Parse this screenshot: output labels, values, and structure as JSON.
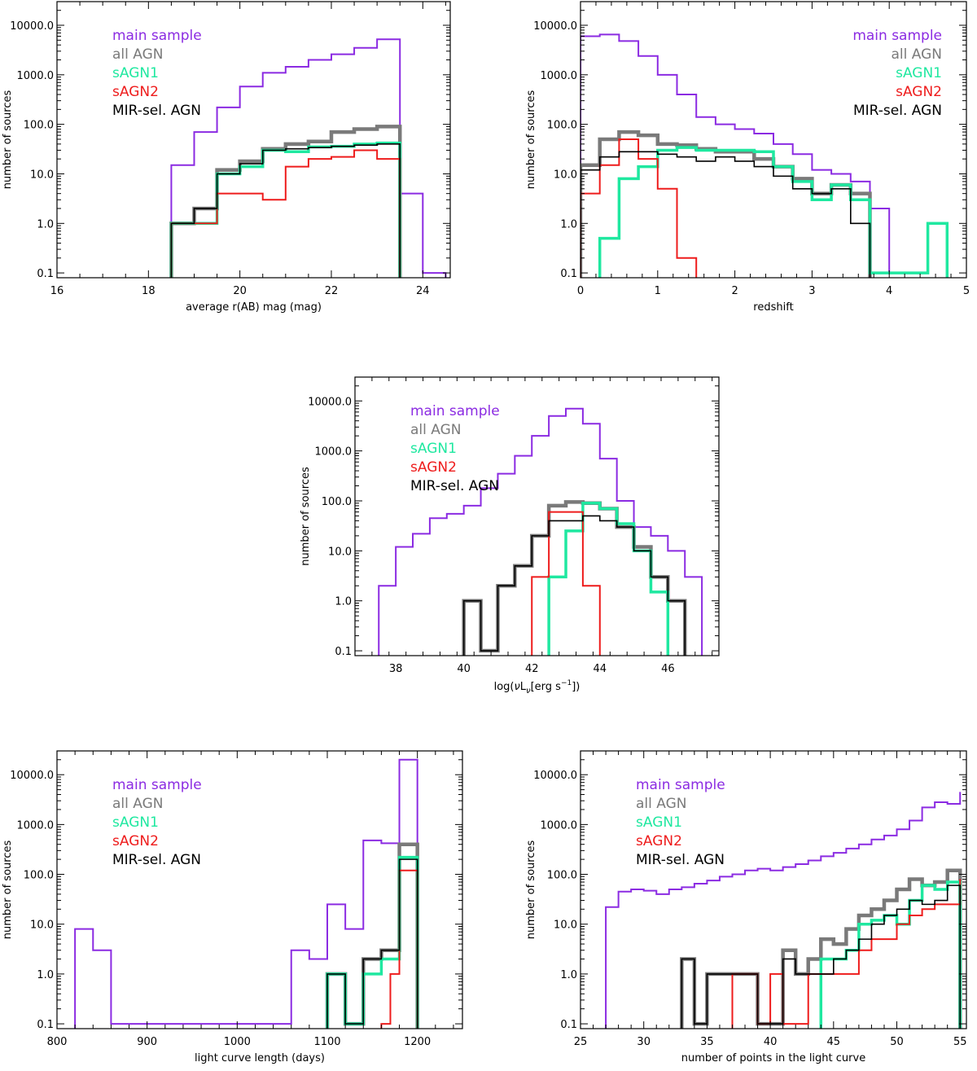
{
  "colors": {
    "main sample": "#8b2be2",
    "all AGN": "#7a7a7a",
    "sAGN1": "#1fe8a0",
    "sAGN2": "#ee1c1c",
    "MIR-sel. AGN": "#000000"
  },
  "chart_data": [
    {
      "id": "rmag",
      "type": "histogram",
      "xlabel": "average r(AB) mag (mag)",
      "ylabel": "number of sources",
      "xlim": [
        16,
        24.6
      ],
      "xticks": [
        16,
        18,
        20,
        22,
        24
      ],
      "xtick_labels": [
        "16",
        "18",
        "20",
        "22",
        "24"
      ],
      "yscale": "log",
      "ylim": [
        0.08,
        30000
      ],
      "yticks": [
        0.1,
        1,
        10,
        100,
        1000,
        10000
      ],
      "ytick_labels": [
        "0.1",
        "1.0",
        "10.0",
        "100.0",
        "1000.0",
        "10000.0"
      ],
      "legend_position": "top-left",
      "legend": [
        "main sample",
        "all AGN",
        "sAGN1",
        "sAGN2",
        "MIR-sel. AGN"
      ],
      "series": [
        {
          "name": "main sample",
          "edges": [
            18.5,
            19,
            19.5,
            20,
            20.5,
            21,
            21.5,
            22,
            22.5,
            23,
            23.5,
            24,
            24.5
          ],
          "counts": [
            15,
            70,
            220,
            580,
            1100,
            1450,
            2000,
            2600,
            3500,
            5200,
            4,
            0.1
          ]
        },
        {
          "name": "all AGN",
          "edges": [
            18.5,
            19,
            19.5,
            20,
            20.5,
            21,
            21.5,
            22,
            22.5,
            23,
            23.5
          ],
          "counts": [
            1,
            2,
            12,
            18,
            32,
            40,
            45,
            70,
            80,
            90
          ]
        },
        {
          "name": "sAGN1",
          "edges": [
            18.5,
            19,
            19.5,
            20,
            20.5,
            21,
            21.5,
            22,
            22.5,
            23,
            23.5
          ],
          "counts": [
            1,
            1,
            10,
            14,
            30,
            28,
            35,
            36,
            40,
            42
          ]
        },
        {
          "name": "sAGN2",
          "edges": [
            18.5,
            19,
            19.5,
            20,
            20.5,
            21,
            21.5,
            22,
            22.5,
            23,
            23.5
          ],
          "counts": [
            1,
            1,
            4,
            4,
            3,
            14,
            20,
            22,
            30,
            20
          ]
        },
        {
          "name": "MIR-sel. AGN",
          "edges": [
            18.5,
            19,
            19.5,
            20,
            20.5,
            21,
            21.5,
            22,
            22.5,
            23,
            23.5
          ],
          "counts": [
            1,
            2,
            10,
            16,
            30,
            32,
            34,
            36,
            38,
            40
          ]
        }
      ]
    },
    {
      "id": "redshift",
      "type": "histogram",
      "xlabel": "redshift",
      "ylabel": "number of sources",
      "xlim": [
        0,
        5
      ],
      "xticks": [
        0,
        1,
        2,
        3,
        4,
        5
      ],
      "xtick_labels": [
        "0",
        "1",
        "2",
        "3",
        "4",
        "5"
      ],
      "yscale": "log",
      "ylim": [
        0.08,
        30000
      ],
      "yticks": [
        0.1,
        1,
        10,
        100,
        1000,
        10000
      ],
      "ytick_labels": [
        "0.1",
        "1.0",
        "10.0",
        "100.0",
        "1000.0",
        "10000.0"
      ],
      "legend_position": "top-right",
      "legend": [
        "main sample",
        "all AGN",
        "sAGN1",
        "sAGN2",
        "MIR-sel. AGN"
      ],
      "series": [
        {
          "name": "main sample",
          "edges": [
            0,
            0.25,
            0.5,
            0.75,
            1.0,
            1.25,
            1.5,
            1.75,
            2.0,
            2.25,
            2.5,
            2.75,
            3.0,
            3.25,
            3.5,
            3.75,
            4.0
          ],
          "counts": [
            6000,
            6500,
            4800,
            2400,
            1000,
            400,
            140,
            100,
            80,
            65,
            40,
            25,
            12,
            10,
            7,
            2,
            0.1
          ]
        },
        {
          "name": "all AGN",
          "edges": [
            0,
            0.25,
            0.5,
            0.75,
            1.0,
            1.25,
            1.5,
            1.75,
            2.0,
            2.25,
            2.5,
            2.75,
            3.0,
            3.25,
            3.5,
            3.75
          ],
          "counts": [
            15,
            50,
            70,
            60,
            40,
            38,
            32,
            28,
            28,
            20,
            14,
            8,
            4,
            6,
            4
          ]
        },
        {
          "name": "sAGN1",
          "edges": [
            0.25,
            0.5,
            0.75,
            1.0,
            1.25,
            1.5,
            1.75,
            2.0,
            2.25,
            2.5,
            2.75,
            3.0,
            3.25,
            3.5,
            3.75,
            4.0,
            4.25,
            4.5,
            4.75
          ],
          "counts": [
            0.5,
            8,
            14,
            30,
            34,
            30,
            30,
            30,
            28,
            14,
            7,
            3,
            6,
            3,
            0.1,
            0.1,
            0.1,
            1
          ]
        },
        {
          "name": "sAGN2",
          "edges": [
            0,
            0.25,
            0.5,
            0.75,
            1.0,
            1.25,
            1.5
          ],
          "counts": [
            4,
            15,
            50,
            20,
            5,
            0.2
          ]
        },
        {
          "name": "MIR-sel. AGN",
          "edges": [
            0,
            0.25,
            0.5,
            0.75,
            1.0,
            1.25,
            1.5,
            1.75,
            2.0,
            2.25,
            2.5,
            2.75,
            3.0,
            3.25,
            3.5,
            3.75
          ],
          "counts": [
            12,
            22,
            28,
            28,
            25,
            22,
            18,
            22,
            18,
            14,
            9,
            5,
            4,
            5,
            1
          ]
        }
      ]
    },
    {
      "id": "luminosity",
      "type": "histogram",
      "xlabel": "log(νL_ν[erg s^-1])",
      "xlabel_parts": [
        "log(",
        "ν",
        "L",
        "ν",
        "[erg s",
        "−1",
        "])"
      ],
      "ylabel": "number of sources",
      "xlim": [
        36.8,
        47.5
      ],
      "xticks": [
        38,
        40,
        42,
        44,
        46
      ],
      "xtick_labels": [
        "38",
        "40",
        "42",
        "44",
        "46"
      ],
      "yscale": "log",
      "ylim": [
        0.08,
        30000
      ],
      "yticks": [
        0.1,
        1,
        10,
        100,
        1000,
        10000
      ],
      "ytick_labels": [
        "0.1",
        "1.0",
        "10.0",
        "100.0",
        "1000.0",
        "10000.0"
      ],
      "legend_position": "top-left",
      "legend": [
        "main sample",
        "all AGN",
        "sAGN1",
        "sAGN2",
        "MIR-sel. AGN"
      ],
      "series": [
        {
          "name": "main sample",
          "edges": [
            37.5,
            38,
            38.5,
            39,
            39.5,
            40,
            40.5,
            41,
            41.5,
            42,
            42.5,
            43,
            43.5,
            44,
            44.5,
            45,
            45.5,
            46,
            46.5,
            47
          ],
          "counts": [
            2,
            12,
            22,
            45,
            55,
            80,
            180,
            350,
            800,
            2000,
            5000,
            7000,
            3500,
            700,
            100,
            30,
            20,
            10,
            3
          ]
        },
        {
          "name": "all AGN",
          "edges": [
            40,
            40.5,
            41,
            41.5,
            42,
            42.5,
            43,
            43.5,
            44,
            44.5,
            45,
            45.5,
            46,
            46.5
          ],
          "counts": [
            1,
            0.1,
            2,
            5,
            20,
            80,
            95,
            90,
            70,
            30,
            12,
            3,
            1
          ]
        },
        {
          "name": "sAGN1",
          "edges": [
            42.5,
            43,
            43.5,
            44,
            44.5,
            45,
            45.5,
            46
          ],
          "counts": [
            3,
            25,
            90,
            70,
            35,
            10,
            1.5
          ]
        },
        {
          "name": "sAGN2",
          "edges": [
            42,
            42.5,
            43,
            43.5,
            44
          ],
          "counts": [
            3,
            60,
            60,
            2
          ]
        },
        {
          "name": "MIR-sel. AGN",
          "edges": [
            40,
            40.5,
            41,
            41.5,
            42,
            42.5,
            43,
            43.5,
            44,
            44.5,
            45,
            45.5,
            46,
            46.5
          ],
          "counts": [
            1,
            0.1,
            2,
            5,
            20,
            40,
            40,
            50,
            40,
            30,
            10,
            3,
            1
          ]
        }
      ]
    },
    {
      "id": "lc_length",
      "type": "histogram",
      "xlabel": "light curve length (days)",
      "ylabel": "number of sources",
      "xlim": [
        800,
        1250
      ],
      "xticks": [
        800,
        900,
        1000,
        1100,
        1200
      ],
      "xtick_labels": [
        "800",
        "900",
        "1000",
        "1100",
        "1200"
      ],
      "yscale": "log",
      "ylim": [
        0.08,
        30000
      ],
      "yticks": [
        0.1,
        1,
        10,
        100,
        1000,
        10000
      ],
      "ytick_labels": [
        "0.1",
        "1.0",
        "10.0",
        "100.0",
        "1000.0",
        "10000.0"
      ],
      "legend_position": "top-left",
      "legend": [
        "main sample",
        "all AGN",
        "sAGN1",
        "sAGN2",
        "MIR-sel. AGN"
      ],
      "series": [
        {
          "name": "main sample",
          "edges": [
            820,
            840,
            860,
            880,
            900,
            920,
            940,
            960,
            980,
            1000,
            1020,
            1040,
            1060,
            1080,
            1100,
            1120,
            1140,
            1160,
            1180,
            1200
          ],
          "counts": [
            8,
            3,
            0.1,
            0.1,
            0.1,
            0.1,
            0.1,
            0.1,
            0.1,
            0.1,
            0.1,
            0.1,
            3,
            2,
            25,
            8,
            480,
            420,
            20000
          ]
        },
        {
          "name": "all AGN",
          "edges": [
            1100,
            1120,
            1140,
            1160,
            1180,
            1200
          ],
          "counts": [
            1,
            0.1,
            2,
            3,
            400
          ]
        },
        {
          "name": "sAGN1",
          "edges": [
            1100,
            1120,
            1140,
            1160,
            1180,
            1200
          ],
          "counts": [
            1,
            0.1,
            1,
            2,
            220
          ]
        },
        {
          "name": "sAGN2",
          "edges": [
            1160,
            1170,
            1180,
            1200
          ],
          "counts": [
            0.1,
            1,
            120
          ]
        },
        {
          "name": "MIR-sel. AGN",
          "edges": [
            1100,
            1120,
            1140,
            1160,
            1180,
            1200
          ],
          "counts": [
            1,
            0.1,
            2,
            3,
            200
          ]
        }
      ]
    },
    {
      "id": "lc_points",
      "type": "histogram",
      "xlabel": "number of points in the light curve",
      "ylabel": "number of sources",
      "xlim": [
        25,
        55.5
      ],
      "xticks": [
        25,
        30,
        35,
        40,
        45,
        50,
        55
      ],
      "xtick_labels": [
        "25",
        "30",
        "35",
        "40",
        "45",
        "50",
        "55"
      ],
      "yscale": "log",
      "ylim": [
        0.08,
        30000
      ],
      "yticks": [
        0.1,
        1,
        10,
        100,
        1000,
        10000
      ],
      "ytick_labels": [
        "0.1",
        "1.0",
        "10.0",
        "100.0",
        "1000.0",
        "10000.0"
      ],
      "legend_position": "top-left",
      "legend": [
        "main sample",
        "all AGN",
        "sAGN1",
        "sAGN2",
        "MIR-sel. AGN"
      ],
      "series": [
        {
          "name": "main sample",
          "edges": [
            27,
            28,
            29,
            30,
            31,
            32,
            33,
            34,
            35,
            36,
            37,
            38,
            39,
            40,
            41,
            42,
            43,
            44,
            45,
            46,
            47,
            48,
            49,
            50,
            51,
            52,
            53,
            54,
            55
          ],
          "counts": [
            22,
            45,
            50,
            47,
            40,
            50,
            55,
            65,
            75,
            90,
            100,
            120,
            130,
            120,
            140,
            160,
            190,
            230,
            270,
            330,
            400,
            500,
            600,
            800,
            1200,
            2200,
            2800,
            2600,
            4500
          ]
        },
        {
          "name": "all AGN",
          "edges": [
            33,
            34,
            35,
            36,
            37,
            38,
            39,
            40,
            41,
            42,
            43,
            44,
            45,
            46,
            47,
            48,
            49,
            50,
            51,
            52,
            53,
            54,
            55
          ],
          "counts": [
            2,
            0.1,
            1,
            1,
            1,
            1,
            0.1,
            0.1,
            3,
            1,
            2,
            5,
            4,
            8,
            15,
            20,
            30,
            50,
            80,
            60,
            70,
            120
          ]
        },
        {
          "name": "sAGN1",
          "edges": [
            44,
            45,
            46,
            47,
            48,
            49,
            50,
            51,
            52,
            53,
            54,
            55
          ],
          "counts": [
            2,
            2,
            3,
            10,
            12,
            15,
            10,
            30,
            60,
            50,
            70
          ]
        },
        {
          "name": "sAGN2",
          "edges": [
            37,
            38,
            39,
            40,
            41,
            42,
            43,
            44,
            45,
            46,
            47,
            48,
            49,
            50,
            51,
            52,
            53,
            54,
            55
          ],
          "counts": [
            1,
            1,
            0.1,
            1,
            0.1,
            0.1,
            1,
            1,
            1,
            1,
            3,
            5,
            5,
            10,
            15,
            20,
            25,
            25,
            80
          ]
        },
        {
          "name": "MIR-sel. AGN",
          "edges": [
            33,
            34,
            35,
            36,
            37,
            38,
            39,
            40,
            41,
            42,
            43,
            44,
            45,
            46,
            47,
            48,
            49,
            50,
            51,
            52,
            53,
            54,
            55
          ],
          "counts": [
            2,
            0.1,
            1,
            1,
            1,
            1,
            0.1,
            0.1,
            2,
            1,
            1,
            1,
            2,
            3,
            5,
            10,
            15,
            20,
            30,
            25,
            30,
            60
          ]
        }
      ]
    }
  ]
}
